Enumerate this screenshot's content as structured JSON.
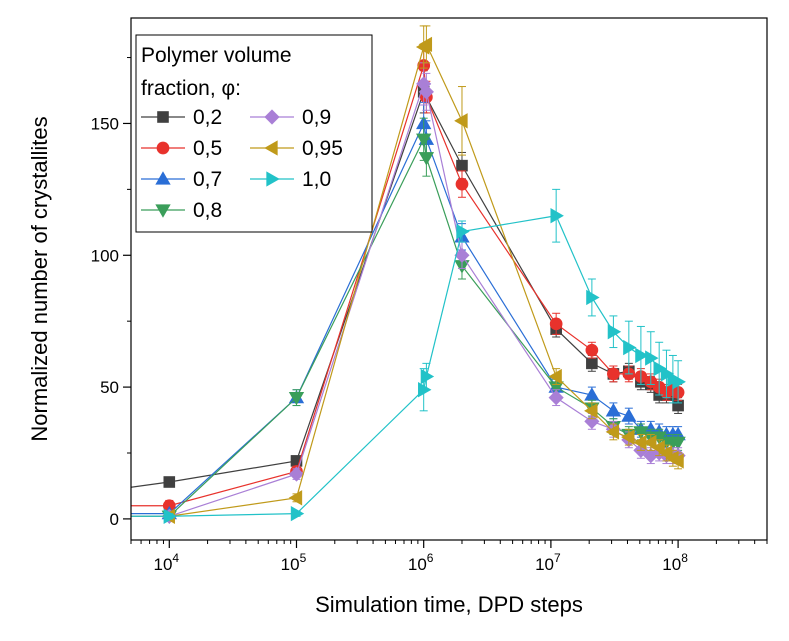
{
  "chart_data": {
    "type": "line",
    "x_scale": "log",
    "xlabel": "Simulation time, DPD steps",
    "ylabel": "Normalized number of crystallites",
    "xlim": [
      5000,
      500000000
    ],
    "ylim": [
      -8,
      190
    ],
    "x_ticks": [
      {
        "value": 10000,
        "base": "10",
        "exp": "4"
      },
      {
        "value": 100000,
        "base": "10",
        "exp": "5"
      },
      {
        "value": 1000000,
        "base": "10",
        "exp": "6"
      },
      {
        "value": 10000000,
        "base": "10",
        "exp": "7"
      },
      {
        "value": 100000000,
        "base": "10",
        "exp": "8"
      }
    ],
    "y_ticks": [
      {
        "value": 0,
        "label": "0"
      },
      {
        "value": 50,
        "label": "50"
      },
      {
        "value": 100,
        "label": "100"
      },
      {
        "value": 150,
        "label": "150"
      }
    ],
    "grid": false,
    "legend": {
      "position": "top-left",
      "title_line1": "Polymer volume",
      "title_line2": "fraction, φ:"
    },
    "series": [
      {
        "name": "0,2",
        "color": "#404040",
        "marker": "square",
        "x": [
          5000,
          10000,
          100000,
          1000000,
          2000000,
          11000000,
          21000000,
          31000000,
          41000000,
          51000000,
          61000000,
          71000000,
          81000000,
          91000000,
          100000000
        ],
        "y": [
          12,
          14,
          22,
          162,
          134,
          72,
          59,
          55,
          56,
          52,
          51,
          47,
          47,
          47,
          43
        ],
        "err": [
          0,
          1,
          1.5,
          8,
          5,
          3,
          3,
          3,
          3,
          3,
          3,
          3,
          3,
          3,
          3
        ]
      },
      {
        "name": "0,5",
        "color": "#e8322c",
        "marker": "circle",
        "x": [
          5000,
          10000,
          100000,
          1000000,
          1050000,
          2000000,
          11000000,
          21000000,
          31000000,
          41000000,
          51000000,
          61000000,
          71000000,
          81000000,
          91000000,
          100000000
        ],
        "y": [
          5,
          5,
          18,
          172,
          160,
          127,
          74,
          64,
          55,
          55,
          54,
          52,
          50,
          48,
          49,
          48
        ],
        "err": [
          0,
          2,
          2,
          8,
          6,
          5,
          4,
          3,
          3,
          3,
          3,
          3,
          3,
          3,
          3,
          3
        ]
      },
      {
        "name": "0,7",
        "color": "#2a6ed6",
        "marker": "triangle-up",
        "x": [
          5000,
          10000,
          100000,
          1000000,
          1050000,
          2000000,
          11000000,
          21000000,
          31000000,
          41000000,
          51000000,
          61000000,
          71000000,
          81000000,
          91000000,
          100000000
        ],
        "y": [
          2,
          2,
          46,
          150,
          144,
          107,
          50,
          47,
          41,
          39,
          34,
          34,
          33,
          32,
          32,
          32
        ],
        "err": [
          0,
          1,
          3,
          8,
          7,
          5,
          3,
          3,
          3,
          3,
          3,
          3,
          3,
          3,
          3,
          3
        ]
      },
      {
        "name": "0,8",
        "color": "#3a9e5a",
        "marker": "triangle-down",
        "x": [
          5000,
          10000,
          100000,
          1000000,
          1050000,
          2000000,
          11000000,
          21000000,
          31000000,
          41000000,
          51000000,
          61000000,
          71000000,
          81000000,
          91000000,
          100000000
        ],
        "y": [
          1,
          1,
          46,
          144,
          137,
          96,
          50,
          42,
          35,
          32,
          33,
          31,
          31,
          29,
          29,
          29
        ],
        "err": [
          0,
          1,
          3,
          8,
          7,
          5,
          3,
          3,
          3,
          3,
          3,
          3,
          3,
          3,
          3,
          3
        ]
      },
      {
        "name": "0,9",
        "color": "#a97fd6",
        "marker": "diamond",
        "x": [
          5000,
          10000,
          100000,
          1000000,
          1050000,
          2000000,
          11000000,
          21000000,
          31000000,
          41000000,
          51000000,
          61000000,
          71000000,
          81000000,
          91000000,
          100000000
        ],
        "y": [
          1,
          1,
          17,
          165,
          162,
          100,
          46,
          37,
          34,
          30,
          26,
          24,
          25,
          24,
          24,
          24
        ],
        "err": [
          0,
          1,
          2,
          8,
          7,
          5,
          3,
          3,
          3,
          3,
          3,
          3,
          3,
          3,
          3,
          3
        ]
      },
      {
        "name": "0,95",
        "color": "#c09a1a",
        "marker": "triangle-left",
        "x": [
          5000,
          10000,
          100000,
          1000000,
          1050000,
          2000000,
          11000000,
          21000000,
          31000000,
          41000000,
          51000000,
          61000000,
          71000000,
          81000000,
          91000000,
          100000000
        ],
        "y": [
          1,
          1,
          8,
          179,
          180,
          151,
          54,
          41,
          33,
          31,
          29,
          29,
          27,
          25,
          23,
          22
        ],
        "err": [
          0,
          1,
          1.5,
          8,
          7,
          13,
          3,
          3,
          3,
          3,
          3,
          3,
          3,
          3,
          3,
          3
        ]
      },
      {
        "name": "1,0",
        "color": "#22c2c8",
        "marker": "triangle-right",
        "x": [
          5000,
          10000,
          100000,
          1000000,
          1050000,
          2000000,
          11000000,
          21000000,
          31000000,
          41000000,
          51000000,
          61000000,
          71000000,
          81000000,
          91000000,
          100000000
        ],
        "y": [
          1,
          1,
          2,
          49,
          54,
          109,
          115,
          84,
          71,
          65,
          62,
          61,
          57,
          55,
          53,
          52
        ],
        "err": [
          0,
          1,
          1,
          8,
          5,
          4,
          10,
          7,
          6,
          10,
          11,
          10,
          10,
          9,
          9,
          8
        ]
      }
    ]
  }
}
